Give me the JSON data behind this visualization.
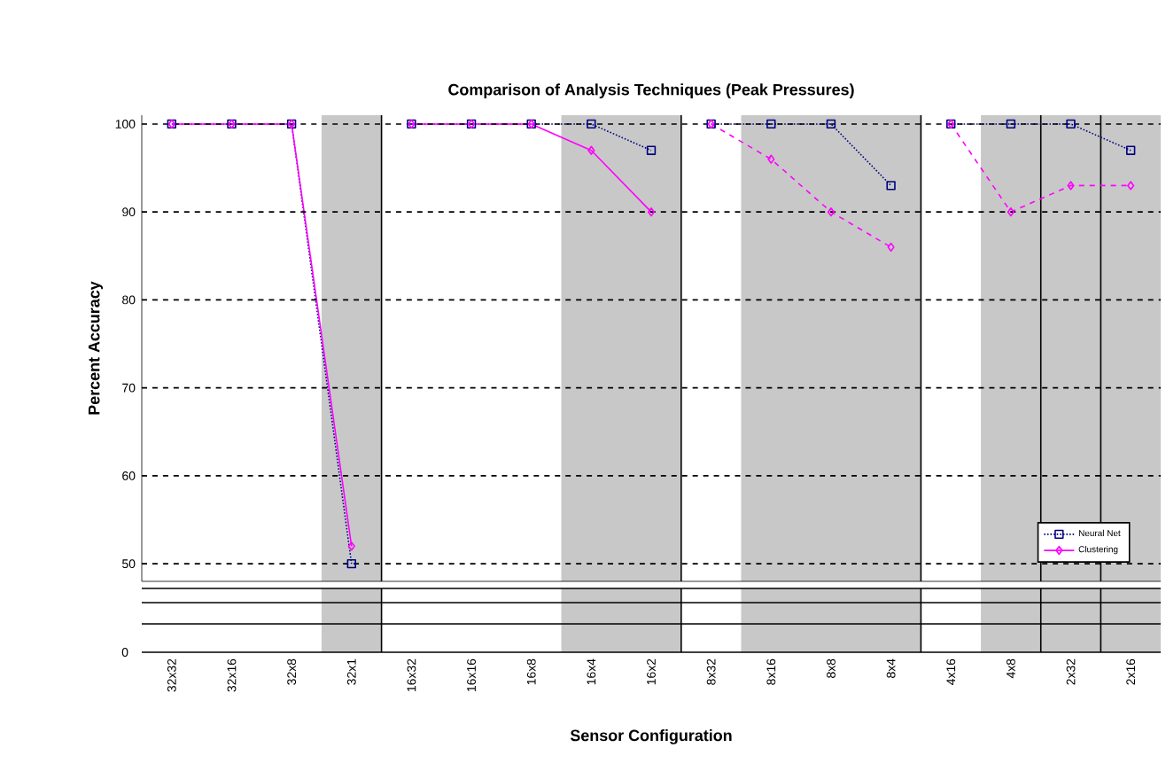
{
  "chart_data": {
    "type": "line",
    "title": "Comparison of Analysis Techniques (Peak Pressures)",
    "ylabel": "Percent Accuracy",
    "xlabel": "Sensor Configuration",
    "categories": [
      "32x32",
      "32x16",
      "32x8",
      "32x1",
      "16x32",
      "16x16",
      "16x8",
      "16x4",
      "16x2",
      "8x32",
      "8x16",
      "8x8",
      "8x4",
      "4x16",
      "4x8",
      "2x32",
      "2x16"
    ],
    "ylim": [
      48,
      101
    ],
    "yticks": [
      50,
      60,
      70,
      80,
      90,
      100
    ],
    "grid": "y",
    "legend": "bottom right",
    "annotations": [
      "0"
    ],
    "series": [
      {
        "name": "Neural Net",
        "color": "#000080",
        "marker": "square",
        "line_style": "dotted",
        "values": [
          100,
          100,
          100,
          50,
          null,
          null,
          null,
          null,
          null,
          null,
          null,
          null,
          null,
          null,
          null,
          null,
          null
        ]
      },
      {
        "color": "#000080",
        "marker": "square",
        "line_style": "dotted",
        "values": [
          null,
          null,
          null,
          null,
          100,
          100,
          100,
          100,
          97,
          null,
          null,
          null,
          null,
          null,
          null,
          null,
          null
        ]
      },
      {
        "color": "#000080",
        "marker": "square",
        "line_style": "dotted",
        "values": [
          null,
          null,
          null,
          null,
          null,
          null,
          null,
          null,
          null,
          100,
          100,
          100,
          93,
          null,
          null,
          null,
          null
        ]
      },
      {
        "color": "#000080",
        "marker": "square",
        "line_style": "dotted",
        "values": [
          null,
          null,
          null,
          null,
          null,
          null,
          null,
          null,
          null,
          null,
          null,
          null,
          null,
          100,
          100,
          100,
          97
        ]
      },
      {
        "name": "Clustering",
        "color": "#ff00ff",
        "marker": "diamond",
        "line_style": "solid",
        "values": [
          100,
          100,
          100,
          52,
          null,
          null,
          null,
          null,
          null,
          null,
          null,
          null,
          null,
          null,
          null,
          null,
          null
        ]
      },
      {
        "color": "#ff00ff",
        "marker": "diamond",
        "line_style": "solid",
        "values": [
          null,
          null,
          null,
          null,
          100,
          100,
          100,
          97,
          90,
          null,
          null,
          null,
          null,
          null,
          null,
          null,
          null
        ]
      },
      {
        "color": "#ff00ff",
        "marker": "diamond",
        "line_style": "dashed",
        "values": [
          null,
          null,
          null,
          null,
          null,
          null,
          null,
          null,
          null,
          100,
          96,
          90,
          86,
          null,
          null,
          null,
          null
        ]
      },
      {
        "color": "#ff00ff",
        "marker": "diamond",
        "line_style": "dashed",
        "values": [
          null,
          null,
          null,
          null,
          null,
          null,
          null,
          null,
          null,
          null,
          null,
          null,
          null,
          100,
          90,
          93,
          93
        ]
      }
    ]
  }
}
